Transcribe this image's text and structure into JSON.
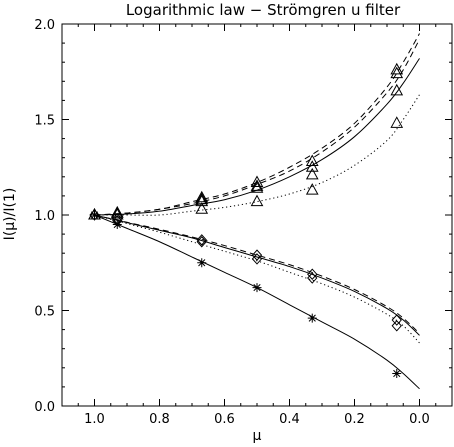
{
  "chart_data": {
    "type": "line",
    "title": "Logarithmic law − Strömgren u filter",
    "xlabel": "μ",
    "ylabel": "I(μ)/I(1)",
    "xlim": [
      1.1,
      -0.1
    ],
    "ylim": [
      0.0,
      2.0
    ],
    "x_reversed": true,
    "grid": false,
    "x_ticks": [
      1.0,
      0.8,
      0.6,
      0.4,
      0.2,
      0.0
    ],
    "x_tick_labels": [
      "1.0",
      "0.8",
      "0.6",
      "0.4",
      "0.2",
      "0.0"
    ],
    "y_ticks": [
      0.0,
      0.5,
      1.0,
      1.5,
      2.0
    ],
    "y_tick_labels": [
      "0.0",
      "0.5",
      "1.0",
      "1.5",
      "2.0"
    ],
    "curves": [
      {
        "style": "solid",
        "group": "upper",
        "x": [
          1.0,
          0.9,
          0.8,
          0.7,
          0.6,
          0.5,
          0.4,
          0.3,
          0.2,
          0.1,
          0.05,
          0.0
        ],
        "y": [
          1.0,
          1.005,
          1.02,
          1.05,
          1.08,
          1.13,
          1.2,
          1.29,
          1.41,
          1.58,
          1.69,
          1.82
        ]
      },
      {
        "style": "dashed",
        "group": "upper",
        "x": [
          1.0,
          0.9,
          0.8,
          0.7,
          0.6,
          0.5,
          0.4,
          0.3,
          0.2,
          0.1,
          0.05,
          0.0
        ],
        "y": [
          1.0,
          1.01,
          1.03,
          1.06,
          1.1,
          1.16,
          1.23,
          1.33,
          1.46,
          1.64,
          1.76,
          1.92
        ]
      },
      {
        "style": "dashed",
        "group": "upper",
        "x": [
          1.0,
          0.9,
          0.8,
          0.7,
          0.6,
          0.5,
          0.4,
          0.3,
          0.2,
          0.1,
          0.05,
          0.0
        ],
        "y": [
          1.0,
          1.01,
          1.03,
          1.07,
          1.11,
          1.17,
          1.25,
          1.35,
          1.48,
          1.67,
          1.8,
          1.95
        ]
      },
      {
        "style": "dotted",
        "group": "upper",
        "x": [
          1.0,
          0.9,
          0.8,
          0.7,
          0.6,
          0.5,
          0.4,
          0.3,
          0.2,
          0.1,
          0.05,
          0.0
        ],
        "y": [
          1.0,
          1.0,
          1.0,
          1.02,
          1.04,
          1.07,
          1.11,
          1.17,
          1.26,
          1.39,
          1.5,
          1.63
        ]
      },
      {
        "style": "solid",
        "group": "lower-diamond",
        "x": [
          1.0,
          0.9,
          0.8,
          0.7,
          0.6,
          0.5,
          0.4,
          0.3,
          0.2,
          0.1,
          0.05,
          0.0
        ],
        "y": [
          1.0,
          0.96,
          0.92,
          0.88,
          0.83,
          0.78,
          0.73,
          0.67,
          0.6,
          0.51,
          0.45,
          0.37
        ]
      },
      {
        "style": "dashed",
        "group": "lower-diamond",
        "x": [
          1.0,
          0.9,
          0.8,
          0.7,
          0.6,
          0.5,
          0.4,
          0.3,
          0.2,
          0.1,
          0.05,
          0.0
        ],
        "y": [
          1.0,
          0.962,
          0.925,
          0.885,
          0.84,
          0.79,
          0.74,
          0.68,
          0.61,
          0.52,
          0.46,
          0.38
        ]
      },
      {
        "style": "dotted",
        "group": "lower-diamond",
        "x": [
          1.0,
          0.9,
          0.8,
          0.7,
          0.6,
          0.5,
          0.4,
          0.3,
          0.2,
          0.1,
          0.05,
          0.0
        ],
        "y": [
          1.0,
          0.955,
          0.91,
          0.86,
          0.81,
          0.76,
          0.7,
          0.64,
          0.57,
          0.48,
          0.42,
          0.33
        ]
      },
      {
        "style": "solid",
        "group": "lower-star",
        "x": [
          1.0,
          0.9,
          0.8,
          0.7,
          0.6,
          0.5,
          0.4,
          0.3,
          0.2,
          0.1,
          0.05,
          0.0
        ],
        "y": [
          1.0,
          0.93,
          0.86,
          0.78,
          0.7,
          0.62,
          0.53,
          0.44,
          0.35,
          0.24,
          0.17,
          0.09
        ]
      }
    ],
    "markers": [
      {
        "symbol": "triangle",
        "x": [
          1.0,
          0.93,
          0.67,
          0.5,
          0.33,
          0.07
        ],
        "y": [
          1.0,
          1.01,
          1.09,
          1.17,
          1.28,
          1.76
        ]
      },
      {
        "symbol": "triangle",
        "x": [
          1.0,
          0.93,
          0.67,
          0.5,
          0.33,
          0.07
        ],
        "y": [
          1.0,
          1.01,
          1.07,
          1.14,
          1.25,
          1.74
        ]
      },
      {
        "symbol": "triangle",
        "x": [
          0.93,
          0.67,
          0.5,
          0.33,
          0.07
        ],
        "y": [
          1.0,
          1.03,
          1.07,
          1.13,
          1.48
        ]
      },
      {
        "symbol": "triangle",
        "x": [
          0.67,
          0.5,
          0.33,
          0.07
        ],
        "y": [
          1.08,
          1.15,
          1.21,
          1.65
        ]
      },
      {
        "symbol": "diamond",
        "x": [
          1.0,
          0.93,
          0.67,
          0.5,
          0.33,
          0.07
        ],
        "y": [
          1.0,
          0.97,
          0.87,
          0.79,
          0.69,
          0.45
        ]
      },
      {
        "symbol": "diamond",
        "x": [
          0.93,
          0.67,
          0.5,
          0.33,
          0.07
        ],
        "y": [
          0.98,
          0.86,
          0.77,
          0.67,
          0.42
        ]
      },
      {
        "symbol": "star",
        "x": [
          1.0,
          0.93,
          0.67,
          0.5,
          0.33,
          0.07
        ],
        "y": [
          1.0,
          0.95,
          0.75,
          0.62,
          0.46,
          0.17
        ]
      }
    ]
  }
}
